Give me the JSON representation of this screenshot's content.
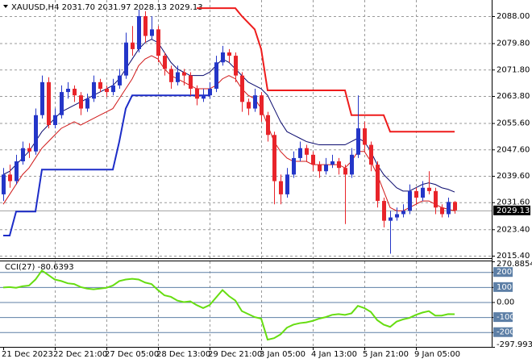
{
  "chart_data": {
    "type": "candlestick",
    "title": "XAUUSD,H4 2031.70 2031.97 2028.13 2029.13",
    "categories": [
      "21 Dec 2023",
      null,
      null,
      null,
      null,
      null,
      null,
      null,
      "22 Dec 21:00",
      null,
      null,
      null,
      null,
      null,
      null,
      null,
      "27 Dec 05:00",
      null,
      null,
      null,
      null,
      null,
      null,
      null,
      "28 Dec 13:00",
      null,
      null,
      null,
      null,
      null,
      null,
      null,
      "29 Dec 21:00",
      null,
      null,
      null,
      null,
      null,
      null,
      null,
      "3 Jan 05:00",
      null,
      null,
      null,
      null,
      null,
      null,
      null,
      "4 Jan 13:00",
      null,
      null,
      null,
      null,
      null,
      null,
      null,
      "5 Jan 21:00",
      null,
      null,
      null,
      null,
      null,
      null,
      null,
      "9 Jan 05:00",
      null,
      null,
      null,
      null,
      null,
      null
    ],
    "open": [
      2034,
      2040,
      2038,
      2044,
      2048,
      2047,
      2058,
      2068,
      2055,
      2058,
      2065,
      2066,
      2064,
      2060,
      2063,
      2068,
      2066,
      2065,
      2067,
      2070,
      2080,
      2078,
      2088,
      2082,
      2084,
      2076,
      2072,
      2068,
      2071,
      2070,
      2066,
      2063,
      2064,
      2066,
      2074,
      2077,
      2076,
      2070,
      2062,
      2060,
      2064,
      2058,
      2052,
      2038,
      2034,
      2040,
      2045,
      2048,
      2046,
      2043,
      2041,
      2043,
      2044,
      2042,
      2040,
      2046,
      2054,
      2049,
      2043,
      2032,
      2026,
      2027,
      2028,
      2029,
      2035,
      2033,
      2036,
      2035,
      2030,
      2028,
      2031.7
    ],
    "high": [
      2042,
      2043,
      2046,
      2050,
      2049.5,
      2060,
      2070,
      2069.5,
      2060,
      2067,
      2068,
      2067,
      2065,
      2064.5,
      2070,
      2069,
      2067,
      2069,
      2072,
      2083,
      2085,
      2090,
      2089.5,
      2088,
      2085,
      2077,
      2073,
      2073,
      2072,
      2071,
      2067,
      2066,
      2068,
      2076,
      2079,
      2078,
      2077,
      2071,
      2063,
      2066,
      2065,
      2059,
      2053,
      2040,
      2042,
      2047,
      2050,
      2049,
      2047,
      2044,
      2045,
      2046,
      2045,
      2043,
      2048,
      2064,
      2056,
      2050,
      2044,
      2033,
      2029,
      2030,
      2031,
      2037,
      2036,
      2038,
      2041,
      2036,
      2031,
      2033,
      2031.97
    ],
    "low": [
      2032,
      2036,
      2037,
      2043,
      2045,
      2046,
      2057,
      2054,
      2054,
      2057,
      2063,
      2062,
      2058,
      2059,
      2062,
      2065,
      2063.5,
      2064,
      2066,
      2069,
      2076,
      2077,
      2080,
      2081,
      2074,
      2070,
      2066,
      2067,
      2067,
      2064,
      2061,
      2062,
      2063,
      2065,
      2073,
      2074,
      2068,
      2059,
      2058,
      2059,
      2056,
      2050,
      2031,
      2031,
      2033,
      2039,
      2044,
      2044,
      2041,
      2039,
      2040,
      2042,
      2040,
      2025,
      2039,
      2045,
      2047,
      2041,
      2030,
      2024,
      2016,
      2026,
      2027,
      2028,
      2031,
      2032,
      2034,
      2028,
      2027,
      2027,
      2028.13
    ],
    "close": [
      2040,
      2038,
      2044,
      2048,
      2047,
      2058,
      2068,
      2055,
      2058,
      2065,
      2066,
      2064,
      2060,
      2063,
      2068,
      2066,
      2065,
      2067,
      2070,
      2080,
      2078,
      2088,
      2082,
      2084,
      2076,
      2072,
      2068,
      2071,
      2070,
      2066,
      2063,
      2064,
      2066,
      2074,
      2077,
      2076,
      2070,
      2062,
      2060,
      2064,
      2058,
      2052,
      2038,
      2034,
      2040,
      2045,
      2048,
      2046,
      2043,
      2041,
      2043,
      2044,
      2042,
      2040,
      2046,
      2054,
      2049,
      2043,
      2032,
      2026,
      2027,
      2028,
      2029,
      2035,
      2033,
      2036,
      2035,
      2030,
      2028,
      2031.7,
      2029.13
    ],
    "up_color": "#2436c8",
    "down_color": "#e8242a",
    "lines": [
      {
        "color": "#0a0a6e",
        "values": [
          2040,
          2041,
          2043,
          2045,
          2047,
          2050,
          2053,
          2055,
          2057,
          2059,
          2060,
          2061,
          2062,
          2063,
          2064,
          2065,
          2066,
          2067,
          2069,
          2072,
          2075,
          2078,
          2080,
          2081,
          2080,
          2077,
          2074,
          2072,
          2071,
          2070,
          2070,
          2070,
          2071,
          2073,
          2075,
          2074,
          2072,
          2070,
          2068,
          2067,
          2066,
          2064,
          2060,
          2056,
          2053,
          2052,
          2051,
          2050,
          2049.5,
          2049,
          2049,
          2049,
          2049,
          2049,
          2050,
          2051,
          2050,
          2047,
          2043,
          2040,
          2038,
          2036,
          2035,
          2035,
          2036,
          2037,
          2037.5,
          2037,
          2036,
          2035.5,
          2034.7
        ]
      },
      {
        "color": "#d01818",
        "values": [
          2031,
          2034,
          2037,
          2040,
          2042,
          2045,
          2048,
          2050,
          2052,
          2054,
          2055,
          2056,
          2055,
          2056,
          2057,
          2058,
          2059,
          2060,
          2063,
          2066,
          2069,
          2073,
          2075,
          2076,
          2075,
          2072,
          2070,
          2069,
          2068,
          2067,
          2066,
          2066,
          2066,
          2067,
          2069,
          2070,
          2069,
          2066,
          2064,
          2063,
          2060,
          2055,
          2050,
          2047,
          2045,
          2044,
          2044,
          2044,
          2043,
          2043,
          2043,
          2043,
          2043,
          2042,
          2044,
          2047,
          2047,
          2044,
          2040,
          2035,
          2030,
          2029,
          2029,
          2030,
          2031,
          2032,
          2032,
          2031,
          2030,
          2029.5,
          2029
        ]
      },
      {
        "color": "#ee1c1c",
        "values": [
          null,
          null,
          null,
          null,
          null,
          null,
          null,
          null,
          null,
          null,
          null,
          null,
          null,
          null,
          null,
          null,
          null,
          null,
          null,
          null,
          null,
          null,
          null,
          null,
          null,
          null,
          null,
          null,
          null,
          null,
          2090.4,
          2090.4,
          2090.4,
          2090.4,
          2090.4,
          2090.4,
          2090.4,
          2088,
          2086,
          2084,
          2078,
          2065.5,
          2065.5,
          2065.5,
          2065.5,
          2065.5,
          2065.5,
          2065.5,
          2065.5,
          2065.5,
          2065.5,
          2065.5,
          2065.5,
          2065.5,
          2058,
          2058,
          2058,
          2058,
          2058,
          2058,
          2053,
          2053,
          2053,
          2053,
          2053,
          2053,
          2053,
          2053,
          2053,
          2053,
          2053
        ]
      },
      {
        "color": "#1c2cc8",
        "values": [
          2021.5,
          2021.5,
          2028.8,
          2028.8,
          2028.8,
          2028.8,
          2041.5,
          2041.5,
          2041.5,
          2041.5,
          2041.5,
          2041.5,
          2041.5,
          2041.5,
          2041.5,
          2041.5,
          2041.5,
          2041.5,
          2050,
          2060,
          2064,
          2064,
          2064,
          2064,
          2064,
          2064,
          2064,
          2064,
          2064,
          2064,
          2064,
          2064,
          2064,
          null,
          null,
          null,
          null,
          null,
          null,
          null,
          null,
          null,
          null,
          null,
          null,
          null,
          null,
          null,
          null,
          null,
          null,
          null,
          null,
          null,
          null,
          null,
          null,
          null,
          null,
          null,
          null,
          null,
          null,
          null,
          null,
          null,
          null,
          null,
          null,
          null,
          null
        ]
      }
    ],
    "last_price": 2029.13,
    "ylim": [
      2014.67,
      2092.89
    ],
    "yticks": [
      {
        "value": 2088,
        "label": "2088.00"
      },
      {
        "value": 2079.8,
        "label": "2079.80"
      },
      {
        "value": 2071.8,
        "label": "2071.80"
      },
      {
        "value": 2063.8,
        "label": "2063.80"
      },
      {
        "value": 2055.6,
        "label": "2055.60"
      },
      {
        "value": 2047.6,
        "label": "2047.60"
      },
      {
        "value": 2039.6,
        "label": "2039.60"
      },
      {
        "value": 2031.6,
        "label": "2031.60"
      },
      {
        "value": 2023.4,
        "label": "2023.40"
      },
      {
        "value": 2015.4,
        "label": "2015.40"
      }
    ],
    "grid": true,
    "cci": {
      "title": "CCI(27) -80.6393",
      "color": "#66dd11",
      "level_color": "#5d7fa6",
      "values": [
        97,
        100,
        95,
        105,
        110,
        150,
        210,
        180,
        150,
        140,
        125,
        120,
        100,
        90,
        85,
        90,
        95,
        110,
        140,
        150,
        155,
        150,
        130,
        120,
        80,
        45,
        35,
        10,
        0,
        5,
        -20,
        -40,
        -20,
        30,
        80,
        40,
        10,
        -60,
        -80,
        -100,
        -110,
        -250,
        -240,
        -215,
        -170,
        -150,
        -140,
        -135,
        -125,
        -110,
        -100,
        -85,
        -80,
        -85,
        -75,
        -25,
        -40,
        -65,
        -120,
        -150,
        -165,
        -130,
        -115,
        -105,
        -85,
        -70,
        -60,
        -90,
        -90,
        -80,
        -80.6393
      ],
      "ylim": [
        -297.9937,
        270.8854
      ],
      "yticks": [
        270.8854,
        200,
        100,
        {
          "value": 0,
          "label": "0.00"
        },
        -100,
        -200,
        -297.9937
      ]
    }
  }
}
